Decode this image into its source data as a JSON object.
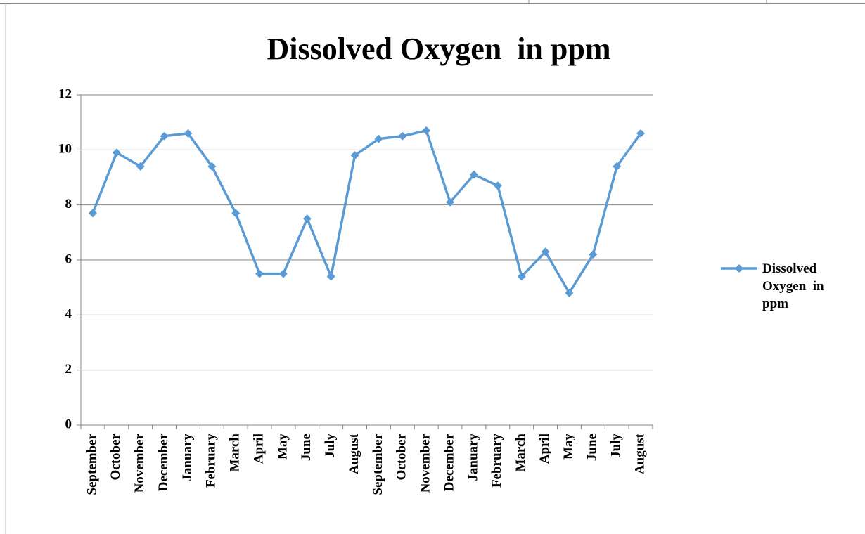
{
  "chart_data": {
    "type": "line",
    "title": "Dissolved Oxygen  in ppm",
    "categories": [
      "September",
      "October",
      "November",
      "December",
      "January",
      "February",
      "March",
      "April",
      "May",
      "June",
      "July",
      "August",
      "September",
      "October",
      "November",
      "December",
      "January",
      "February",
      "March",
      "April",
      "May",
      "June",
      "July",
      "August"
    ],
    "series": [
      {
        "name": "Dissolved Oxygen  in ppm",
        "color": "#5b9bd5",
        "values": [
          7.7,
          9.9,
          9.4,
          10.5,
          10.6,
          9.4,
          7.7,
          5.5,
          5.5,
          7.5,
          5.4,
          9.8,
          10.4,
          10.5,
          10.7,
          8.1,
          9.1,
          8.7,
          5.4,
          6.3,
          4.8,
          6.2,
          9.4,
          10.6
        ]
      }
    ],
    "ylim": [
      0,
      12
    ],
    "yticks": [
      0,
      2,
      4,
      6,
      8,
      10,
      12
    ],
    "grid": true,
    "legend": "right"
  }
}
